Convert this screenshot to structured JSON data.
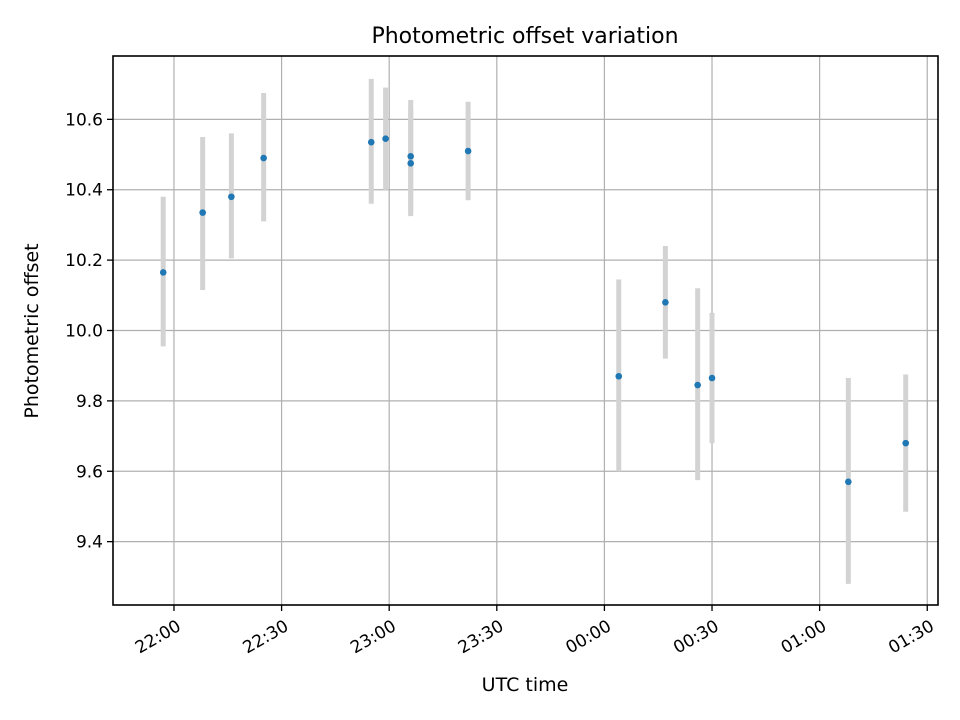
{
  "chart_data": {
    "type": "scatter",
    "title": "Photometric offset variation",
    "xlabel": "UTC time",
    "ylabel": "Photometric offset",
    "x_axis": "time",
    "xlim": [
      "21:43",
      "01:33"
    ],
    "ylim": [
      9.22,
      10.78
    ],
    "x_ticks": [
      "22:00",
      "22:30",
      "23:00",
      "23:30",
      "00:00",
      "00:30",
      "01:00",
      "01:30"
    ],
    "y_ticks": [
      9.4,
      9.6,
      9.8,
      10.0,
      10.2,
      10.4,
      10.6
    ],
    "y_tick_labels": [
      "9.4",
      "9.6",
      "9.8",
      "10.0",
      "10.2",
      "10.4",
      "10.6"
    ],
    "grid": true,
    "colors": {
      "marker": "#1f77b4",
      "errorbar": "#d3d3d3",
      "grid": "#b0b0b0"
    },
    "points": [
      {
        "x": "21:57",
        "y": 10.165,
        "lo": 9.955,
        "hi": 10.38
      },
      {
        "x": "22:08",
        "y": 10.335,
        "lo": 10.115,
        "hi": 10.55
      },
      {
        "x": "22:16",
        "y": 10.38,
        "lo": 10.205,
        "hi": 10.56
      },
      {
        "x": "22:25",
        "y": 10.49,
        "lo": 10.31,
        "hi": 10.675
      },
      {
        "x": "22:55",
        "y": 10.535,
        "lo": 10.36,
        "hi": 10.715
      },
      {
        "x": "22:59",
        "y": 10.545,
        "lo": 10.4,
        "hi": 10.69
      },
      {
        "x": "23:06",
        "y": 10.495,
        "lo": 10.335,
        "hi": 10.655
      },
      {
        "x": "23:06",
        "y": 10.475,
        "lo": 10.325,
        "hi": 10.635
      },
      {
        "x": "23:22",
        "y": 10.51,
        "lo": 10.37,
        "hi": 10.65
      },
      {
        "x": "00:04",
        "y": 9.87,
        "lo": 9.6,
        "hi": 10.145
      },
      {
        "x": "00:17",
        "y": 10.08,
        "lo": 9.92,
        "hi": 10.24
      },
      {
        "x": "00:26",
        "y": 9.845,
        "lo": 9.575,
        "hi": 10.12
      },
      {
        "x": "00:30",
        "y": 9.865,
        "lo": 9.68,
        "hi": 10.05
      },
      {
        "x": "01:08",
        "y": 9.57,
        "lo": 9.28,
        "hi": 9.865
      },
      {
        "x": "01:24",
        "y": 9.68,
        "lo": 9.485,
        "hi": 9.875
      }
    ]
  }
}
